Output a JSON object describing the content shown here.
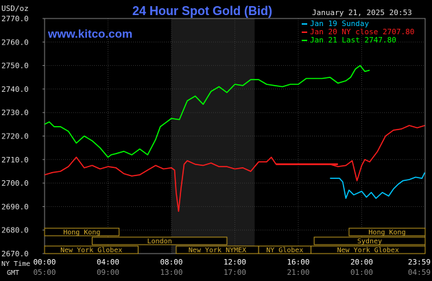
{
  "chart_data": {
    "type": "line",
    "title": "24 Hour Spot Gold (Bid)",
    "y_axis_unit": "USD/oz",
    "timestamp": "January 21, 2025 20:53",
    "watermark": "www.kitco.com",
    "ylim": [
      2670,
      2770
    ],
    "y_ticks": [
      "2770.0",
      "2760.0",
      "2750.0",
      "2740.0",
      "2730.0",
      "2720.0",
      "2710.0",
      "2700.0",
      "2690.0",
      "2680.0",
      "2670.0"
    ],
    "x_ticks": {
      "ny_label": "NY Time",
      "gmt_label": "GMT",
      "ny": [
        "00:00",
        "04:00",
        "08:00",
        "12:00",
        "16:00",
        "20:00",
        "23:59"
      ],
      "gmt": [
        "05:00",
        "09:00",
        "13:00",
        "17:00",
        "21:00",
        "01:00",
        "04:59"
      ]
    },
    "legend": [
      {
        "label": "Jan 19 Sunday",
        "color": "#00c8ff"
      },
      {
        "label": "Jan 20 NY close 2707.80",
        "color": "#ff1e1e"
      },
      {
        "label": "Jan 21 Last 2747.80",
        "color": "#00ff00"
      }
    ],
    "shaded_hours": [
      8.0,
      13.25
    ],
    "sessions": {
      "row1": [
        {
          "label": "Hong Kong",
          "start": 0.0,
          "end": 4.7
        },
        {
          "label": "Hong Kong",
          "start": 19.2,
          "end": 24.0
        }
      ],
      "row2": [
        {
          "label": "London",
          "start": 3.0,
          "end": 11.5
        },
        {
          "label": "Sydney",
          "start": 17.0,
          "end": 24.0
        }
      ],
      "row3": [
        {
          "label": "New York Globex",
          "start": 0.0,
          "end": 5.9
        },
        {
          "label": "New York NYMEX",
          "start": 8.3,
          "end": 13.5
        },
        {
          "label": "NY Globex",
          "start": 13.5,
          "end": 16.8
        },
        {
          "label": "New York Globex",
          "start": 16.8,
          "end": 24.0
        }
      ]
    },
    "series": [
      {
        "name": "Jan 19 Sunday",
        "color": "#00c8ff",
        "x": [
          18.0,
          18.6,
          18.8,
          19.0,
          19.2,
          19.5,
          20.0,
          20.3,
          20.6,
          20.9,
          21.3,
          21.7,
          22.0,
          22.3,
          22.6,
          23.0,
          23.4,
          23.8,
          23.98
        ],
        "y": [
          2702.0,
          2702.0,
          2700.5,
          2693.5,
          2697.0,
          2695.0,
          2696.5,
          2694.0,
          2696.0,
          2693.5,
          2696.0,
          2694.5,
          2697.5,
          2699.5,
          2701.0,
          2701.5,
          2702.5,
          2702.0,
          2704.5
        ]
      },
      {
        "name": "Jan 20 NY close 2707.80",
        "color": "#ff1e1e",
        "x": [
          0.0,
          0.5,
          1.0,
          1.5,
          2.0,
          2.5,
          3.0,
          3.5,
          4.0,
          4.5,
          5.0,
          5.5,
          6.0,
          6.5,
          7.0,
          7.5,
          8.0,
          8.2,
          8.3,
          8.45,
          8.6,
          8.8,
          9.0,
          9.5,
          10.0,
          10.5,
          11.0,
          11.5,
          12.0,
          12.5,
          13.0,
          13.5,
          14.0,
          14.3,
          14.6,
          15.0,
          16.0,
          17.0,
          18.0,
          18.5,
          19.0,
          19.4,
          19.7,
          20.0,
          20.2,
          20.5,
          21.0,
          21.5,
          22.0,
          22.5,
          23.0,
          23.5,
          23.98
        ],
        "y": [
          2703.5,
          2704.5,
          2705.0,
          2707.0,
          2711.0,
          2706.5,
          2707.5,
          2706.0,
          2707.0,
          2706.5,
          2704.0,
          2703.0,
          2703.5,
          2705.5,
          2707.5,
          2706.0,
          2706.5,
          2705.5,
          2696.0,
          2688.0,
          2697.5,
          2708.0,
          2709.5,
          2708.0,
          2707.5,
          2708.5,
          2707.0,
          2707.0,
          2706.0,
          2706.5,
          2705.0,
          2709.0,
          2709.0,
          2711.0,
          2708.0,
          2708.0,
          2708.0,
          2708.0,
          2708.0,
          2707.0,
          2707.5,
          2709.5,
          2701.0,
          2707.5,
          2710.0,
          2709.0,
          2713.5,
          2720.0,
          2722.5,
          2723.0,
          2724.5,
          2723.5,
          2724.5
        ]
      },
      {
        "name": "Jan 21 Last 2747.80",
        "color": "#00ff00",
        "x": [
          0.0,
          0.3,
          0.6,
          1.0,
          1.5,
          2.0,
          2.5,
          3.0,
          3.5,
          4.0,
          4.2,
          4.5,
          5.0,
          5.5,
          6.0,
          6.5,
          7.0,
          7.3,
          7.6,
          8.0,
          8.5,
          9.0,
          9.5,
          10.0,
          10.5,
          11.0,
          11.5,
          12.0,
          12.5,
          13.0,
          13.5,
          14.0,
          14.5,
          15.0,
          15.5,
          16.0,
          16.5,
          17.0,
          17.5,
          18.0,
          18.5,
          19.0,
          19.3,
          19.6,
          19.9,
          20.2,
          20.5
        ],
        "y": [
          2725.0,
          2726.0,
          2724.0,
          2724.0,
          2722.0,
          2717.0,
          2720.0,
          2718.0,
          2715.0,
          2711.0,
          2712.0,
          2712.5,
          2713.5,
          2712.0,
          2714.5,
          2712.0,
          2718.5,
          2724.0,
          2725.5,
          2727.5,
          2727.0,
          2735.0,
          2737.0,
          2733.5,
          2739.0,
          2741.0,
          2738.5,
          2742.0,
          2741.5,
          2744.0,
          2744.0,
          2742.0,
          2741.5,
          2741.0,
          2742.0,
          2742.0,
          2744.5,
          2744.5,
          2744.5,
          2745.0,
          2742.5,
          2743.5,
          2745.0,
          2748.5,
          2750.0,
          2747.5,
          2748.0
        ]
      }
    ]
  }
}
